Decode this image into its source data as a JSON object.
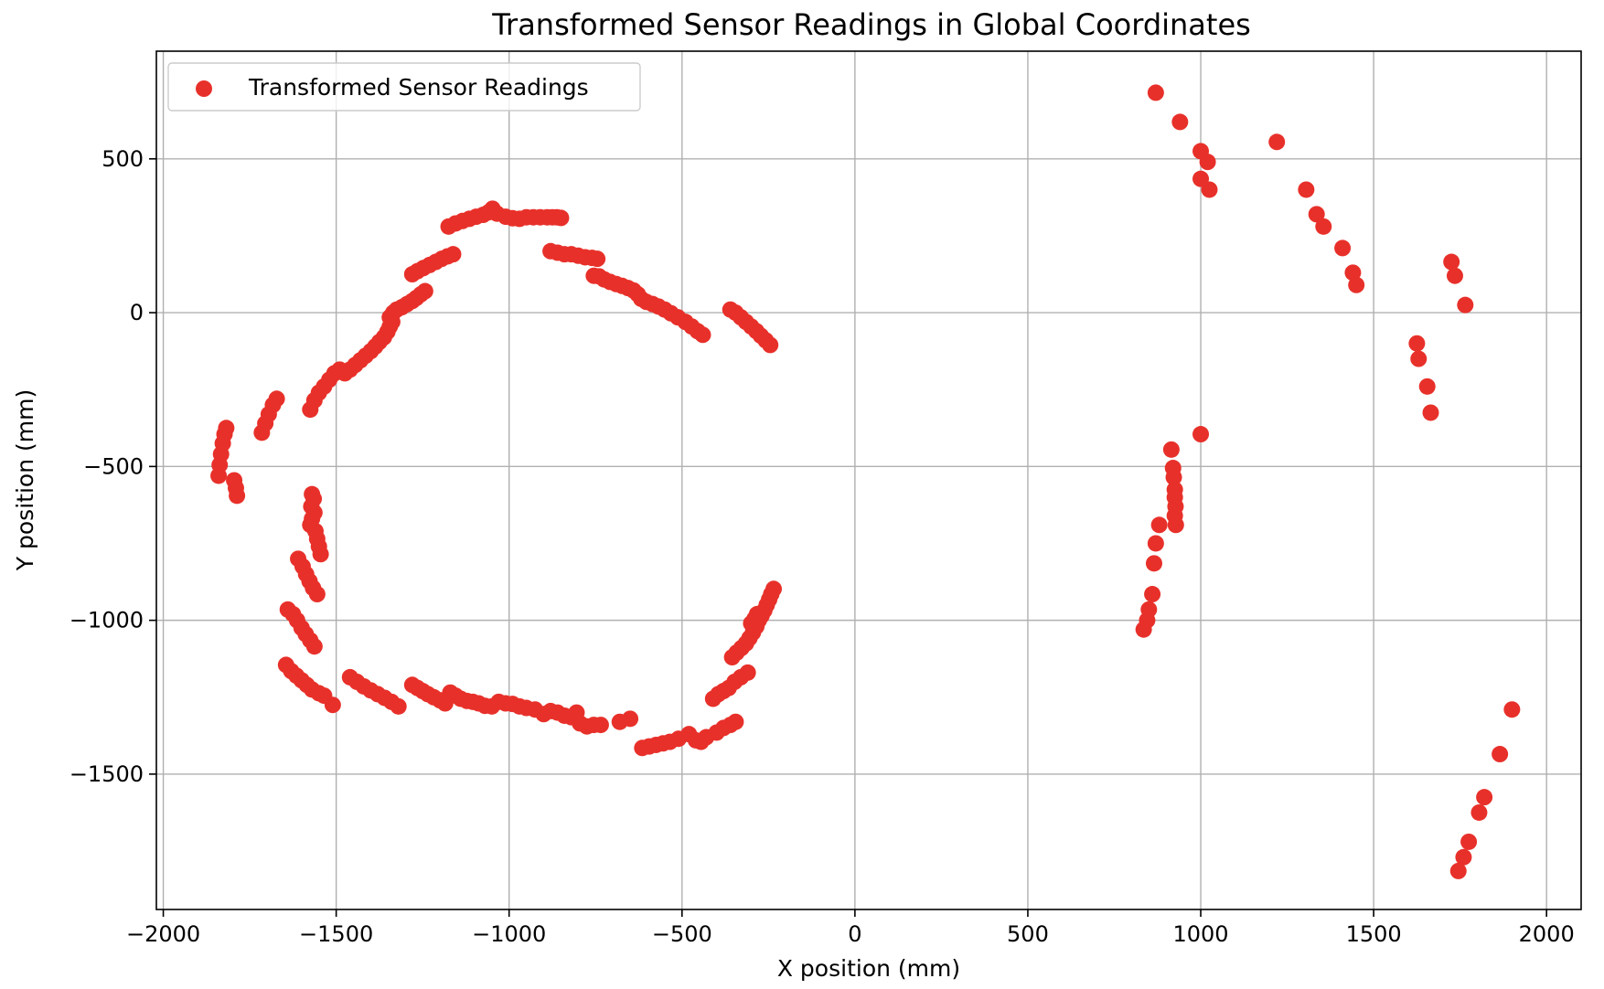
{
  "chart_data": {
    "type": "scatter",
    "title": "Transformed Sensor Readings in Global Coordinates",
    "xlabel": "X position (mm)",
    "ylabel": "Y position (mm)",
    "xlim": [
      -2020,
      2100
    ],
    "ylim": [
      -1940,
      850
    ],
    "xticks": [
      -2000,
      -1500,
      -1000,
      -500,
      0,
      500,
      1000,
      1500,
      2000
    ],
    "xtick_labels": [
      "−2000",
      "−1500",
      "−1000",
      "−500",
      "0",
      "500",
      "1000",
      "1500",
      "2000"
    ],
    "yticks": [
      500,
      0,
      -500,
      -1000,
      -1500
    ],
    "ytick_labels": [
      "500",
      "0",
      "−500",
      "−1000",
      "−1500"
    ],
    "grid": true,
    "legend_position": "top-left",
    "series": [
      {
        "name": "Transformed Sensor Readings",
        "color": "#e8302a",
        "points": [
          [
            -1840,
            -530
          ],
          [
            -1837,
            -495
          ],
          [
            -1833,
            -460
          ],
          [
            -1828,
            -425
          ],
          [
            -1823,
            -395
          ],
          [
            -1818,
            -375
          ],
          [
            -1795,
            -545
          ],
          [
            -1790,
            -570
          ],
          [
            -1787,
            -595
          ],
          [
            -1715,
            -390
          ],
          [
            -1705,
            -360
          ],
          [
            -1695,
            -330
          ],
          [
            -1683,
            -300
          ],
          [
            -1672,
            -280
          ],
          [
            -1575,
            -315
          ],
          [
            -1563,
            -285
          ],
          [
            -1550,
            -260
          ],
          [
            -1535,
            -240
          ],
          [
            -1520,
            -218
          ],
          [
            -1505,
            -197
          ],
          [
            -1490,
            -185
          ],
          [
            -1475,
            -197
          ],
          [
            -1460,
            -185
          ],
          [
            -1445,
            -170
          ],
          [
            -1430,
            -155
          ],
          [
            -1415,
            -140
          ],
          [
            -1400,
            -125
          ],
          [
            -1387,
            -110
          ],
          [
            -1375,
            -95
          ],
          [
            -1362,
            -80
          ],
          [
            -1352,
            -62
          ],
          [
            -1345,
            -45
          ],
          [
            -1338,
            -30
          ],
          [
            -1345,
            -15
          ],
          [
            -1335,
            0
          ],
          [
            -1325,
            10
          ],
          [
            -1310,
            18
          ],
          [
            -1295,
            28
          ],
          [
            -1280,
            38
          ],
          [
            -1268,
            48
          ],
          [
            -1255,
            60
          ],
          [
            -1243,
            70
          ],
          [
            -1280,
            125
          ],
          [
            -1265,
            135
          ],
          [
            -1248,
            145
          ],
          [
            -1230,
            155
          ],
          [
            -1212,
            165
          ],
          [
            -1195,
            175
          ],
          [
            -1178,
            183
          ],
          [
            -1162,
            190
          ],
          [
            -1175,
            280
          ],
          [
            -1155,
            290
          ],
          [
            -1135,
            298
          ],
          [
            -1115,
            305
          ],
          [
            -1095,
            312
          ],
          [
            -1075,
            318
          ],
          [
            -1060,
            326
          ],
          [
            -1048,
            338
          ],
          [
            -1035,
            322
          ],
          [
            -1010,
            312
          ],
          [
            -990,
            307
          ],
          [
            -970,
            305
          ],
          [
            -950,
            310
          ],
          [
            -930,
            310
          ],
          [
            -910,
            310
          ],
          [
            -890,
            310
          ],
          [
            -875,
            310
          ],
          [
            -862,
            310
          ],
          [
            -850,
            308
          ],
          [
            -880,
            200
          ],
          [
            -860,
            195
          ],
          [
            -840,
            190
          ],
          [
            -820,
            190
          ],
          [
            -800,
            185
          ],
          [
            -780,
            180
          ],
          [
            -760,
            178
          ],
          [
            -745,
            175
          ],
          [
            -755,
            120
          ],
          [
            -740,
            118
          ],
          [
            -725,
            108
          ],
          [
            -708,
            100
          ],
          [
            -690,
            93
          ],
          [
            -673,
            87
          ],
          [
            -656,
            80
          ],
          [
            -640,
            72
          ],
          [
            -628,
            60
          ],
          [
            -618,
            45
          ],
          [
            -603,
            35
          ],
          [
            -585,
            28
          ],
          [
            -568,
            20
          ],
          [
            -550,
            10
          ],
          [
            -532,
            -2
          ],
          [
            -512,
            -15
          ],
          [
            -490,
            -30
          ],
          [
            -472,
            -45
          ],
          [
            -455,
            -60
          ],
          [
            -440,
            -72
          ],
          [
            -360,
            10
          ],
          [
            -345,
            0
          ],
          [
            -330,
            -15
          ],
          [
            -315,
            -30
          ],
          [
            -300,
            -45
          ],
          [
            -285,
            -60
          ],
          [
            -272,
            -75
          ],
          [
            -258,
            -90
          ],
          [
            -245,
            -105
          ],
          [
            -1570,
            -590
          ],
          [
            -1565,
            -605
          ],
          [
            -1572,
            -630
          ],
          [
            -1563,
            -650
          ],
          [
            -1570,
            -670
          ],
          [
            -1575,
            -690
          ],
          [
            -1560,
            -710
          ],
          [
            -1555,
            -735
          ],
          [
            -1550,
            -760
          ],
          [
            -1545,
            -785
          ],
          [
            -1610,
            -800
          ],
          [
            -1597,
            -825
          ],
          [
            -1587,
            -850
          ],
          [
            -1577,
            -873
          ],
          [
            -1567,
            -895
          ],
          [
            -1555,
            -915
          ],
          [
            -1640,
            -965
          ],
          [
            -1625,
            -980
          ],
          [
            -1613,
            -1000
          ],
          [
            -1600,
            -1025
          ],
          [
            -1588,
            -1045
          ],
          [
            -1575,
            -1065
          ],
          [
            -1563,
            -1085
          ],
          [
            -1645,
            -1145
          ],
          [
            -1630,
            -1165
          ],
          [
            -1615,
            -1180
          ],
          [
            -1600,
            -1195
          ],
          [
            -1585,
            -1210
          ],
          [
            -1570,
            -1225
          ],
          [
            -1550,
            -1237
          ],
          [
            -1535,
            -1245
          ],
          [
            -1510,
            -1275
          ],
          [
            -1460,
            -1185
          ],
          [
            -1440,
            -1200
          ],
          [
            -1420,
            -1215
          ],
          [
            -1400,
            -1228
          ],
          [
            -1380,
            -1240
          ],
          [
            -1360,
            -1252
          ],
          [
            -1340,
            -1265
          ],
          [
            -1320,
            -1280
          ],
          [
            -1280,
            -1210
          ],
          [
            -1265,
            -1220
          ],
          [
            -1250,
            -1230
          ],
          [
            -1235,
            -1240
          ],
          [
            -1218,
            -1250
          ],
          [
            -1200,
            -1260
          ],
          [
            -1185,
            -1270
          ],
          [
            -1170,
            -1235
          ],
          [
            -1155,
            -1245
          ],
          [
            -1140,
            -1255
          ],
          [
            -1122,
            -1262
          ],
          [
            -1105,
            -1265
          ],
          [
            -1088,
            -1270
          ],
          [
            -1070,
            -1278
          ],
          [
            -1050,
            -1280
          ],
          [
            -1030,
            -1265
          ],
          [
            -1010,
            -1270
          ],
          [
            -990,
            -1272
          ],
          [
            -970,
            -1280
          ],
          [
            -950,
            -1285
          ],
          [
            -925,
            -1290
          ],
          [
            -900,
            -1305
          ],
          [
            -880,
            -1295
          ],
          [
            -860,
            -1300
          ],
          [
            -840,
            -1310
          ],
          [
            -820,
            -1315
          ],
          [
            -805,
            -1300
          ],
          [
            -795,
            -1335
          ],
          [
            -775,
            -1345
          ],
          [
            -755,
            -1340
          ],
          [
            -735,
            -1340
          ],
          [
            -680,
            -1330
          ],
          [
            -650,
            -1320
          ],
          [
            -615,
            -1415
          ],
          [
            -595,
            -1410
          ],
          [
            -575,
            -1405
          ],
          [
            -555,
            -1400
          ],
          [
            -535,
            -1395
          ],
          [
            -510,
            -1385
          ],
          [
            -480,
            -1370
          ],
          [
            -460,
            -1390
          ],
          [
            -445,
            -1395
          ],
          [
            -430,
            -1380
          ],
          [
            -400,
            -1365
          ],
          [
            -380,
            -1350
          ],
          [
            -360,
            -1340
          ],
          [
            -345,
            -1330
          ],
          [
            -410,
            -1255
          ],
          [
            -395,
            -1240
          ],
          [
            -380,
            -1230
          ],
          [
            -365,
            -1220
          ],
          [
            -348,
            -1200
          ],
          [
            -330,
            -1185
          ],
          [
            -310,
            -1170
          ],
          [
            -355,
            -1120
          ],
          [
            -342,
            -1105
          ],
          [
            -328,
            -1090
          ],
          [
            -315,
            -1075
          ],
          [
            -305,
            -1058
          ],
          [
            -295,
            -1040
          ],
          [
            -285,
            -1020
          ],
          [
            -278,
            -1000
          ],
          [
            -270,
            -985
          ],
          [
            -262,
            -968
          ],
          [
            -255,
            -950
          ],
          [
            -248,
            -932
          ],
          [
            -242,
            -915
          ],
          [
            -235,
            -898
          ],
          [
            -300,
            -1010
          ],
          [
            -290,
            -995
          ],
          [
            -283,
            -980
          ],
          [
            870,
            715
          ],
          [
            940,
            620
          ],
          [
            1000,
            525
          ],
          [
            1020,
            490
          ],
          [
            1000,
            435
          ],
          [
            1025,
            400
          ],
          [
            1220,
            555
          ],
          [
            1305,
            400
          ],
          [
            1335,
            320
          ],
          [
            1355,
            280
          ],
          [
            1410,
            210
          ],
          [
            1440,
            130
          ],
          [
            1450,
            90
          ],
          [
            1725,
            165
          ],
          [
            1735,
            120
          ],
          [
            1765,
            25
          ],
          [
            1625,
            -100
          ],
          [
            1630,
            -150
          ],
          [
            1655,
            -240
          ],
          [
            1665,
            -325
          ],
          [
            1000,
            -395
          ],
          [
            915,
            -445
          ],
          [
            920,
            -505
          ],
          [
            922,
            -535
          ],
          [
            925,
            -575
          ],
          [
            925,
            -600
          ],
          [
            927,
            -630
          ],
          [
            925,
            -660
          ],
          [
            928,
            -690
          ],
          [
            880,
            -690
          ],
          [
            870,
            -750
          ],
          [
            865,
            -815
          ],
          [
            860,
            -915
          ],
          [
            850,
            -965
          ],
          [
            845,
            -1000
          ],
          [
            835,
            -1030
          ],
          [
            1900,
            -1290
          ],
          [
            1865,
            -1435
          ],
          [
            1820,
            -1575
          ],
          [
            1805,
            -1625
          ],
          [
            1775,
            -1720
          ],
          [
            1760,
            -1770
          ],
          [
            1745,
            -1815
          ]
        ]
      }
    ]
  }
}
